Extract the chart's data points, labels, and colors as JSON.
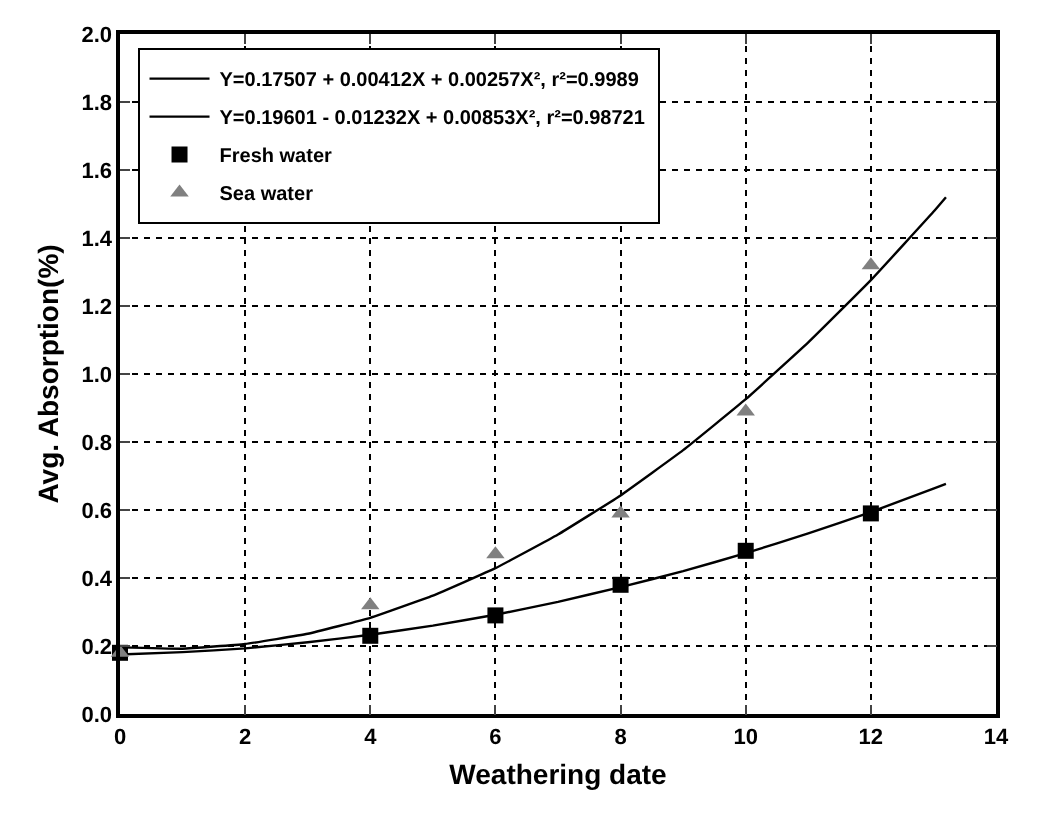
{
  "chart_data": {
    "type": "scatter",
    "xlabel": "Weathering date",
    "ylabel": "Avg. Absorption(%)",
    "xlim": [
      0,
      14
    ],
    "xticks": [
      0,
      2,
      4,
      6,
      8,
      10,
      12,
      14
    ],
    "ylim": [
      0,
      2.0
    ],
    "yticks": [
      {
        "value": 0,
        "label": "0.0"
      },
      {
        "value": 0.2,
        "label": "0.2"
      },
      {
        "value": 0.4,
        "label": "0.4"
      },
      {
        "value": 0.6,
        "label": "0.6"
      },
      {
        "value": 0.8,
        "label": "0.8"
      },
      {
        "value": 1.0,
        "label": "1.0"
      },
      {
        "value": 1.2,
        "label": "1.2"
      },
      {
        "value": 1.4,
        "label": "1.4"
      },
      {
        "value": 1.6,
        "label": "1.6"
      },
      {
        "value": 1.8,
        "label": "1.8"
      },
      {
        "value": 2.0,
        "label": "2.0"
      }
    ],
    "grid": true,
    "legend": "top left",
    "series": [
      {
        "type": "line",
        "name": "Y=0.17507 + 0.00412X + 0.00257X², r²=0.9989",
        "color": "#000000",
        "marker": "none",
        "line_style": "solid",
        "x": [
          0,
          1,
          2,
          3,
          4,
          5,
          6,
          7,
          8,
          9,
          10,
          11,
          12,
          13,
          13.2
        ],
        "values": [
          0.175,
          0.182,
          0.193,
          0.211,
          0.233,
          0.26,
          0.292,
          0.33,
          0.373,
          0.42,
          0.473,
          0.531,
          0.594,
          0.663,
          0.677
        ]
      },
      {
        "type": "line",
        "name": "Y=0.19601 - 0.01232X + 0.00853X², r²=0.98721",
        "color": "#000000",
        "marker": "none",
        "line_style": "solid",
        "x": [
          0,
          1,
          2,
          3,
          4,
          5,
          6,
          7,
          8,
          9,
          10,
          11,
          12,
          13,
          13.2
        ],
        "values": [
          0.196,
          0.192,
          0.206,
          0.236,
          0.283,
          0.348,
          0.429,
          0.528,
          0.643,
          0.776,
          0.926,
          1.093,
          1.276,
          1.477,
          1.52
        ]
      },
      {
        "name": "Fresh water",
        "color": "#000000",
        "marker": "square",
        "x": [
          0,
          4,
          6,
          8,
          10,
          12
        ],
        "values": [
          0.18,
          0.23,
          0.29,
          0.38,
          0.48,
          0.59
        ]
      },
      {
        "name": "Sea water",
        "color": "#808080",
        "marker": "triangle",
        "x": [
          0,
          4,
          6,
          8,
          10,
          12
        ],
        "values": [
          0.18,
          0.32,
          0.47,
          0.59,
          0.89,
          1.32
        ]
      }
    ]
  }
}
